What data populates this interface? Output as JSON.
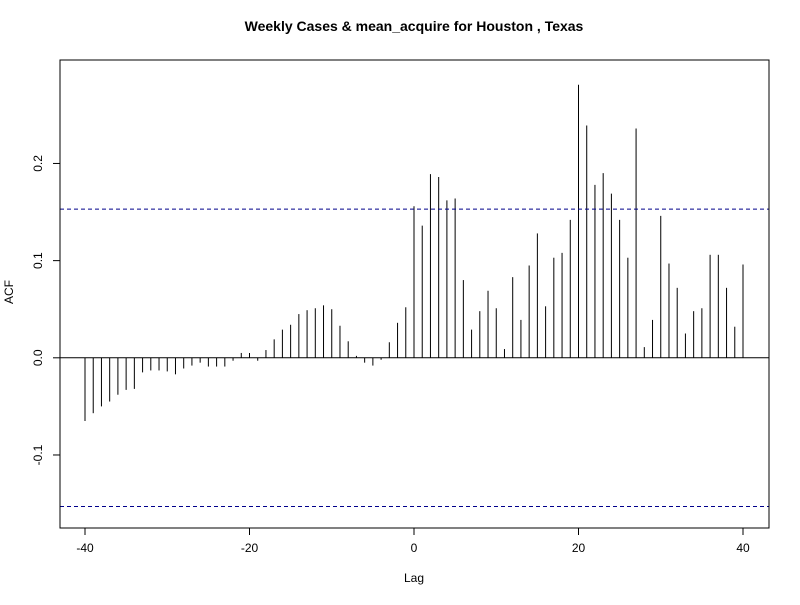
{
  "chart_data": {
    "type": "bar",
    "title": "Weekly Cases & mean_acquire for Houston , Texas",
    "xlabel": "Lag",
    "ylabel": "ACF",
    "xlim": [
      -40,
      40
    ],
    "ylim": [
      -0.17,
      0.29
    ],
    "x_ticks": [
      -40,
      -20,
      0,
      20,
      40
    ],
    "x_tick_labels": [
      "-40",
      "-20",
      "0",
      "20",
      "40"
    ],
    "y_ticks": [
      -0.1,
      0.0,
      0.1,
      0.2
    ],
    "y_tick_labels": [
      "-0.1",
      "0.0",
      "0.1",
      "0.2"
    ],
    "confidence_bounds": [
      0.153,
      -0.153
    ],
    "lags": [
      -40,
      -39,
      -38,
      -37,
      -36,
      -35,
      -34,
      -33,
      -32,
      -31,
      -30,
      -29,
      -28,
      -27,
      -26,
      -25,
      -24,
      -23,
      -22,
      -21,
      -20,
      -19,
      -18,
      -17,
      -16,
      -15,
      -14,
      -13,
      -12,
      -11,
      -10,
      -9,
      -8,
      -7,
      -6,
      -5,
      -4,
      -3,
      -2,
      -1,
      0,
      1,
      2,
      3,
      4,
      5,
      6,
      7,
      8,
      9,
      10,
      11,
      12,
      13,
      14,
      15,
      16,
      17,
      18,
      19,
      20,
      21,
      22,
      23,
      24,
      25,
      26,
      27,
      28,
      29,
      30,
      31,
      32,
      33,
      34,
      35,
      36,
      37,
      38,
      39,
      40
    ],
    "values": [
      -0.065,
      -0.057,
      -0.05,
      -0.045,
      -0.038,
      -0.033,
      -0.032,
      -0.015,
      -0.013,
      -0.013,
      -0.014,
      -0.017,
      -0.011,
      -0.008,
      -0.005,
      -0.009,
      -0.009,
      -0.009,
      -0.003,
      0.005,
      0.005,
      -0.003,
      0.008,
      0.019,
      0.029,
      0.034,
      0.045,
      0.049,
      0.051,
      0.054,
      0.05,
      0.033,
      0.017,
      0.002,
      -0.005,
      -0.008,
      -0.002,
      0.016,
      0.036,
      0.052,
      0.156,
      0.136,
      0.189,
      0.186,
      0.162,
      0.164,
      0.08,
      0.029,
      0.048,
      0.069,
      0.051,
      0.009,
      0.083,
      0.039,
      0.095,
      0.128,
      0.053,
      0.103,
      0.108,
      0.142,
      0.281,
      0.239,
      0.178,
      0.19,
      0.169,
      0.142,
      0.103,
      0.236,
      0.011,
      0.039,
      0.146,
      0.097,
      0.072,
      0.025,
      0.048,
      0.051,
      0.106,
      0.106,
      0.072,
      0.032,
      0.096
    ],
    "colors": {
      "bars": "#000000",
      "zero_line": "#000000",
      "confidence_lines": "#00008b",
      "frame": "#000000"
    }
  }
}
